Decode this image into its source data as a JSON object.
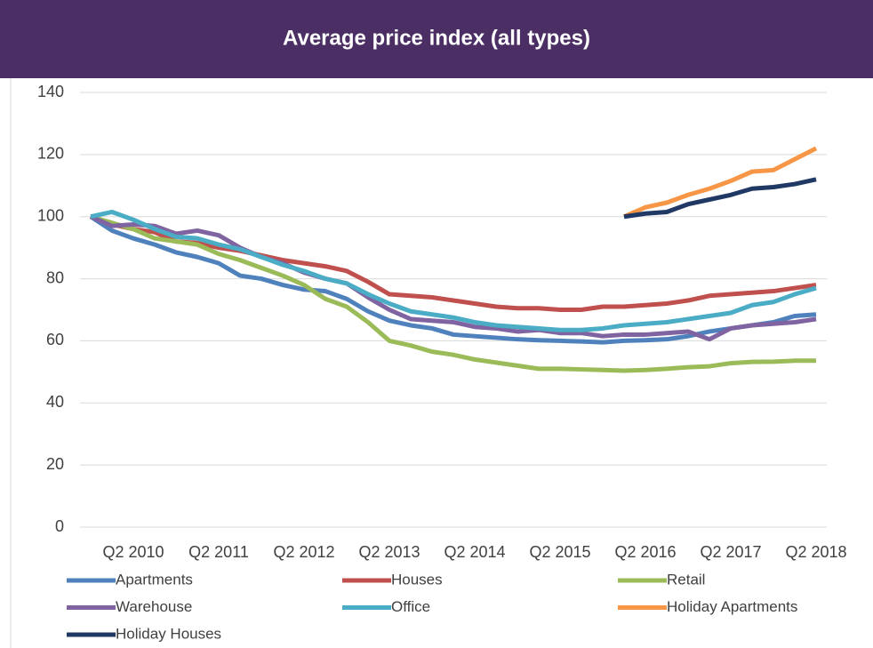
{
  "chart_data": {
    "type": "line",
    "title": "Average price index (all types)",
    "categories": [
      null,
      null,
      "Q2 2010",
      null,
      null,
      null,
      "Q2 2011",
      null,
      null,
      null,
      "Q2 2012",
      null,
      null,
      null,
      "Q2 2013",
      null,
      null,
      null,
      "Q2 2014",
      null,
      null,
      null,
      "Q2 2015",
      null,
      null,
      null,
      "Q2 2016",
      null,
      null,
      null,
      "Q2 2017",
      null,
      null,
      null,
      "Q2 2018"
    ],
    "series": [
      {
        "name": "Apartments",
        "color": "#4f81bd",
        "values": [
          100,
          95.5,
          93,
          91,
          88.5,
          87,
          85,
          81,
          80,
          78,
          76.5,
          76,
          73.5,
          69.5,
          66.5,
          65,
          64,
          62,
          61.5,
          61,
          60.5,
          60.2,
          60,
          59.8,
          59.5,
          60,
          60.2,
          60.5,
          61.5,
          63,
          64,
          65,
          66,
          68,
          68.5
        ]
      },
      {
        "name": "Houses",
        "color": "#c0504d",
        "values": [
          100,
          97.5,
          96,
          95,
          92,
          91.5,
          90,
          89,
          87.5,
          86,
          85,
          84,
          82.5,
          79,
          75,
          74.5,
          74,
          73,
          72,
          71,
          70.5,
          70.5,
          70,
          70,
          71,
          71,
          71.5,
          72,
          73,
          74.5,
          75,
          75.5,
          76,
          77,
          78
        ]
      },
      {
        "name": "Retail",
        "color": "#9bbb59",
        "values": [
          100,
          98,
          96,
          93,
          92,
          91,
          88,
          86,
          83.5,
          81,
          78,
          73.5,
          71,
          66,
          60,
          58.5,
          56.5,
          55.5,
          54,
          53,
          52,
          51,
          51,
          50.8,
          50.6,
          50.4,
          50.6,
          51,
          51.5,
          51.8,
          52.8,
          53.2,
          53.3,
          53.6,
          53.6
        ]
      },
      {
        "name": "Warehouse",
        "color": "#8064a2",
        "values": [
          100,
          97,
          97.5,
          97,
          94.5,
          95.5,
          94,
          90,
          87,
          85,
          82,
          80,
          78.5,
          74,
          70,
          67,
          66.5,
          66,
          64.5,
          64,
          63,
          63.5,
          62.5,
          62.5,
          61.5,
          62,
          62,
          62.5,
          63,
          60.5,
          64,
          65,
          65.5,
          66,
          67
        ]
      },
      {
        "name": "Office",
        "color": "#4bacc6",
        "values": [
          100,
          101.5,
          99,
          96,
          93.5,
          93,
          91,
          89.5,
          87,
          84.5,
          82.5,
          80,
          78.5,
          75,
          72,
          69.5,
          68.5,
          67.5,
          66,
          65,
          64.5,
          64,
          63.5,
          63.5,
          64,
          65,
          65.5,
          66,
          67,
          68,
          69,
          71.5,
          72.5,
          75,
          77
        ]
      },
      {
        "name": "Holiday Apartments",
        "color": "#f79646",
        "values": [
          null,
          null,
          null,
          null,
          null,
          null,
          null,
          null,
          null,
          null,
          null,
          null,
          null,
          null,
          null,
          null,
          null,
          null,
          null,
          null,
          null,
          null,
          null,
          null,
          null,
          100,
          103,
          104.5,
          107,
          109,
          111.5,
          114.5,
          115,
          118.5,
          122
        ]
      },
      {
        "name": "Holiday Houses",
        "color": "#1f3864",
        "values": [
          null,
          null,
          null,
          null,
          null,
          null,
          null,
          null,
          null,
          null,
          null,
          null,
          null,
          null,
          null,
          null,
          null,
          null,
          null,
          null,
          null,
          null,
          null,
          null,
          null,
          100,
          101,
          101.5,
          104,
          105.5,
          107,
          109,
          109.5,
          110.5,
          112
        ]
      }
    ],
    "ylim": [
      0,
      140
    ],
    "yticks": [
      0,
      20,
      40,
      60,
      80,
      100,
      120,
      140
    ],
    "grid": true,
    "legend": "bottom"
  }
}
